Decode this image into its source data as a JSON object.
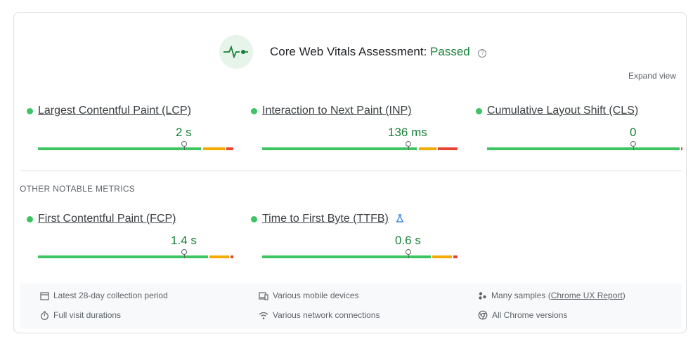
{
  "assessment": {
    "title": "Core Web Vitals Assessment:",
    "status": "Passed",
    "help_glyph": "?",
    "expand_label": "Expand view"
  },
  "core_metrics": [
    {
      "name": "Largest Contentful Paint (LCP)",
      "value": "2 s"
    },
    {
      "name": "Interaction to Next Paint (INP)",
      "value": "136 ms"
    },
    {
      "name": "Cumulative Layout Shift (CLS)",
      "value": "0"
    }
  ],
  "other_section_label": "OTHER NOTABLE METRICS",
  "other_metrics": [
    {
      "name": "First Contentful Paint (FCP)",
      "value": "1.4 s"
    },
    {
      "name": "Time to First Byte (TTFB)",
      "value": "0.6 s"
    }
  ],
  "footer": {
    "collection_period": "Latest 28-day collection period",
    "devices": "Various mobile devices",
    "samples_prefix": "Many samples (",
    "samples_link": "Chrome UX Report",
    "samples_suffix": ")",
    "durations": "Full visit durations",
    "network": "Various network connections",
    "chrome_versions": "All Chrome versions"
  },
  "colors": {
    "good": "#3dc561",
    "needs_improvement": "#f4ab00",
    "poor": "#ea4335",
    "pass_text": "#188038"
  },
  "icons": [
    "pulse-icon",
    "help-icon",
    "flask-icon",
    "calendar-icon",
    "devices-icon",
    "samples-icon",
    "stopwatch-icon",
    "wifi-icon",
    "chrome-icon"
  ]
}
